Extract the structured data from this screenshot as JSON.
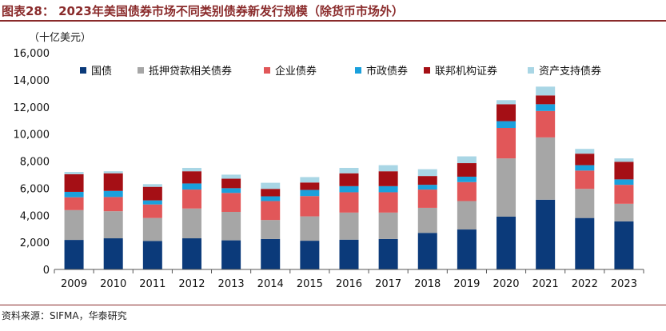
{
  "title": "图表28： 2023年美国债券市场不同类别债券新发行规模（除货币市场外）",
  "unit_label": "（十亿美元）",
  "source": "资料来源：SIFMA，华泰研究",
  "colors": {
    "title": "#8a2b2b",
    "series": [
      "#0b3a7a",
      "#a6a6a6",
      "#e15759",
      "#1aa0dc",
      "#a50f15",
      "#a9d6e5"
    ]
  },
  "chart_data": {
    "type": "bar",
    "stacked": true,
    "title": "2023年美国债券市场不同类别债券新发行规模（除货币市场外）",
    "xlabel": "",
    "ylabel": "（十亿美元）",
    "ylim": [
      0,
      16000
    ],
    "yticks": [
      "0",
      "2,000",
      "4,000",
      "6,000",
      "8,000",
      "10,000",
      "12,000",
      "14,000",
      "16,000"
    ],
    "categories": [
      "2009",
      "2010",
      "2011",
      "2012",
      "2013",
      "2014",
      "2015",
      "2016",
      "2017",
      "2018",
      "2019",
      "2020",
      "2021",
      "2022",
      "2023"
    ],
    "series": [
      {
        "name": "国债",
        "values": [
          2180,
          2300,
          2100,
          2300,
          2150,
          2250,
          2120,
          2200,
          2250,
          2700,
          2950,
          3900,
          5150,
          3800,
          3550
        ]
      },
      {
        "name": "抵押贷款相关债券",
        "values": [
          2200,
          2000,
          1700,
          2200,
          2100,
          1400,
          1800,
          2000,
          1950,
          1850,
          2100,
          4300,
          4600,
          2150,
          1300
        ]
      },
      {
        "name": "企业债券",
        "values": [
          950,
          1050,
          1000,
          1400,
          1400,
          1400,
          1500,
          1500,
          1500,
          1350,
          1400,
          2250,
          1950,
          1350,
          1400
        ]
      },
      {
        "name": "市政债券",
        "values": [
          400,
          450,
          300,
          450,
          350,
          350,
          450,
          450,
          450,
          350,
          400,
          500,
          500,
          400,
          400
        ]
      },
      {
        "name": "联邦机构证券",
        "values": [
          1300,
          1300,
          1000,
          900,
          700,
          550,
          550,
          950,
          1100,
          650,
          1000,
          1250,
          650,
          850,
          1300
        ]
      },
      {
        "name": "资产支持债券",
        "values": [
          170,
          150,
          200,
          250,
          300,
          450,
          400,
          400,
          450,
          500,
          500,
          300,
          650,
          350,
          250
        ]
      }
    ],
    "legend_position": "top",
    "grid": false
  }
}
